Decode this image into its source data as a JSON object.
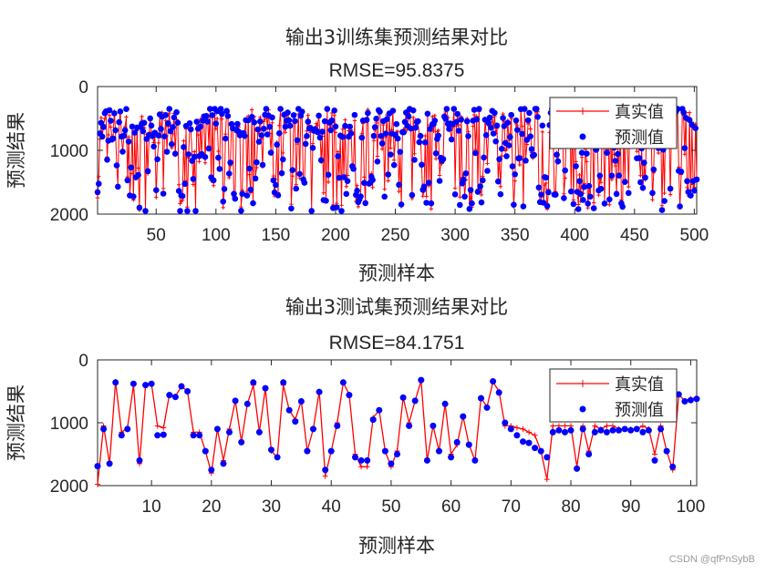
{
  "watermark": "CSDN @qfPnSybB",
  "chart_data": [
    {
      "type": "line",
      "title": "输出3训练集预测结果对比",
      "subtitle": "RMSE=95.8375",
      "xlabel": "预测样本",
      "ylabel": "预测结果",
      "xlim": [
        1,
        502
      ],
      "ylim": [
        0,
        2000
      ],
      "y_reversed": true,
      "xticks": [
        50,
        100,
        150,
        200,
        250,
        300,
        350,
        400,
        450,
        500
      ],
      "yticks": [
        0,
        1000,
        2000
      ],
      "ytick_labels": [
        "0",
        "1000",
        "2000"
      ],
      "n_points": 502,
      "legend": [
        "真实值",
        "预测值"
      ],
      "legend_position": "top-right",
      "series": [
        {
          "name": "真实值",
          "style": "line-plus",
          "color": "#ff0000"
        },
        {
          "name": "预测值",
          "style": "dots",
          "color": "#0000ff"
        }
      ],
      "value_range": [
        350,
        1950
      ],
      "values_note": "dense noisy series, individual values not legible"
    },
    {
      "type": "line",
      "title": "输出3测试集预测结果对比",
      "subtitle": "RMSE=84.1751",
      "xlabel": "预测样本",
      "ylabel": "预测结果",
      "xlim": [
        1,
        101
      ],
      "ylim": [
        0,
        2000
      ],
      "y_reversed": true,
      "xticks": [
        10,
        20,
        30,
        40,
        50,
        60,
        70,
        80,
        90,
        100
      ],
      "yticks": [
        0,
        1000,
        2000
      ],
      "ytick_labels": [
        "0",
        "1000",
        "2000"
      ],
      "legend": [
        "真实值",
        "预测值"
      ],
      "legend_position": "top-right",
      "series": [
        {
          "name": "真实值",
          "style": "line-plus",
          "color": "#ff0000",
          "values": [
            1980,
            1050,
            1650,
            350,
            1150,
            1080,
            400,
            1650,
            400,
            380,
            1050,
            1080,
            550,
            580,
            420,
            500,
            1150,
            1150,
            1450,
            1800,
            1100,
            1600,
            1100,
            650,
            1300,
            700,
            400,
            1150,
            450,
            1450,
            1550,
            400,
            800,
            950,
            650,
            1450,
            1100,
            500,
            1850,
            1450,
            1000,
            360,
            550,
            1500,
            1700,
            1700,
            920,
            800,
            1450,
            1700,
            1450,
            600,
            1000,
            650,
            330,
            1600,
            1050,
            1450,
            700,
            1500,
            1350,
            900,
            1350,
            1600,
            600,
            750,
            350,
            500,
            1050,
            1050,
            1080,
            1100,
            1150,
            1200,
            1450,
            1900,
            1050,
            1050,
            1050,
            1050,
            1700,
            1050,
            1450,
            1050,
            1100,
            1050,
            1050,
            1100,
            1100,
            1100,
            1100,
            1050,
            1100,
            1500,
            1050,
            1450,
            1750,
            550,
            650,
            620,
            600
          ]
        },
        {
          "name": "预测值",
          "style": "dots",
          "color": "#0000ff",
          "values": [
            1690,
            1100,
            1650,
            360,
            1200,
            1100,
            380,
            1600,
            400,
            380,
            1200,
            1190,
            560,
            590,
            420,
            500,
            1200,
            1200,
            1450,
            1750,
            1100,
            1650,
            1150,
            650,
            1310,
            700,
            360,
            1150,
            450,
            1430,
            1550,
            360,
            800,
            980,
            660,
            1450,
            1100,
            510,
            1750,
            1450,
            1050,
            360,
            560,
            1550,
            1600,
            1600,
            950,
            800,
            1450,
            1650,
            1500,
            600,
            1050,
            650,
            320,
            1600,
            1050,
            1450,
            700,
            1550,
            1310,
            900,
            1350,
            1600,
            610,
            760,
            340,
            520,
            1000,
            1100,
            1200,
            1300,
            1320,
            1400,
            1450,
            1550,
            1150,
            1120,
            1150,
            1120,
            1730,
            1100,
            1500,
            1150,
            1120,
            1150,
            1120,
            1120,
            1100,
            1120,
            1100,
            1150,
            1120,
            1600,
            1100,
            1450,
            1700,
            550,
            660,
            640,
            620
          ]
        }
      ]
    }
  ]
}
